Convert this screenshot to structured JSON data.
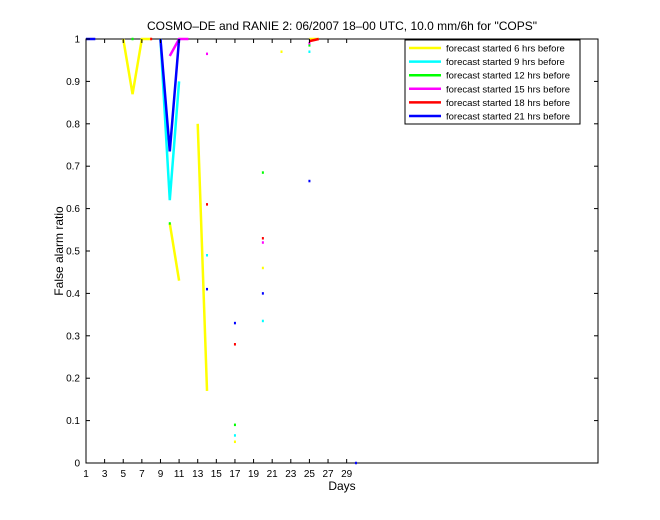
{
  "chart_data": {
    "type": "line",
    "title": "COSMO–DE and RANIE 2: 06/2007 18–00 UTC, 10.0 mm/6h for \"COPS\"",
    "xlabel": "Days",
    "ylabel": "False alarm ratio",
    "xlim": [
      1,
      56
    ],
    "ylim": [
      0,
      1
    ],
    "xticks": [
      1,
      3,
      5,
      7,
      9,
      11,
      13,
      15,
      17,
      19,
      21,
      23,
      25,
      27,
      29
    ],
    "yticks": [
      0,
      0.1,
      0.2,
      0.3,
      0.4,
      0.5,
      0.6,
      0.7,
      0.8,
      0.9,
      1
    ],
    "ytick_labels": [
      "0",
      "0.1",
      "0.2",
      "0.3",
      "0.4",
      "0.5",
      "0.6",
      "0.7",
      "0.8",
      "0.9",
      "1"
    ],
    "grid": false,
    "legend_position": "top-right",
    "series": [
      {
        "name": "forecast started 6 hrs before",
        "color": "#ffff00",
        "values": [
          null,
          null,
          null,
          null,
          1,
          0.87,
          1,
          1,
          null,
          0.565,
          0.43,
          null,
          0.8,
          0.17,
          null,
          null,
          0.05,
          null,
          null,
          0.46,
          null,
          0.97,
          null,
          null,
          1,
          1,
          null,
          null,
          null,
          null
        ]
      },
      {
        "name": "forecast started 9 hrs before",
        "color": "#00ffff",
        "values": [
          null,
          null,
          null,
          null,
          null,
          null,
          null,
          null,
          1,
          0.62,
          0.9,
          null,
          null,
          0.49,
          null,
          null,
          0.065,
          null,
          null,
          0.335,
          null,
          null,
          null,
          null,
          0.97,
          null,
          null,
          null,
          null,
          null
        ]
      },
      {
        "name": "forecast started 12 hrs before",
        "color": "#00ff00",
        "values": [
          null,
          null,
          null,
          null,
          null,
          1,
          null,
          null,
          null,
          0.565,
          null,
          null,
          null,
          null,
          null,
          null,
          0.09,
          null,
          null,
          0.685,
          null,
          null,
          null,
          null,
          0.985,
          null,
          null,
          null,
          null,
          null
        ]
      },
      {
        "name": "forecast started 15 hrs before",
        "color": "#ff00ff",
        "values": [
          null,
          null,
          null,
          null,
          null,
          null,
          null,
          null,
          null,
          0.96,
          1,
          1,
          null,
          0.965,
          null,
          null,
          null,
          null,
          null,
          0.52,
          null,
          null,
          null,
          null,
          0.99,
          null,
          null,
          null,
          null,
          null
        ]
      },
      {
        "name": "forecast started 18 hrs before",
        "color": "#ff0000",
        "values": [
          null,
          null,
          null,
          null,
          null,
          null,
          null,
          1,
          null,
          null,
          null,
          null,
          null,
          0.61,
          null,
          null,
          0.28,
          null,
          null,
          0.53,
          null,
          null,
          null,
          null,
          0.995,
          1,
          null,
          null,
          null,
          null
        ]
      },
      {
        "name": "forecast started 21 hrs before",
        "color": "#0000ff",
        "values": [
          1,
          1,
          null,
          null,
          null,
          null,
          null,
          null,
          1,
          0.735,
          1,
          null,
          null,
          0.41,
          null,
          null,
          0.33,
          null,
          null,
          0.4,
          null,
          null,
          null,
          null,
          0.665,
          null,
          null,
          null,
          null,
          0
        ]
      }
    ]
  }
}
